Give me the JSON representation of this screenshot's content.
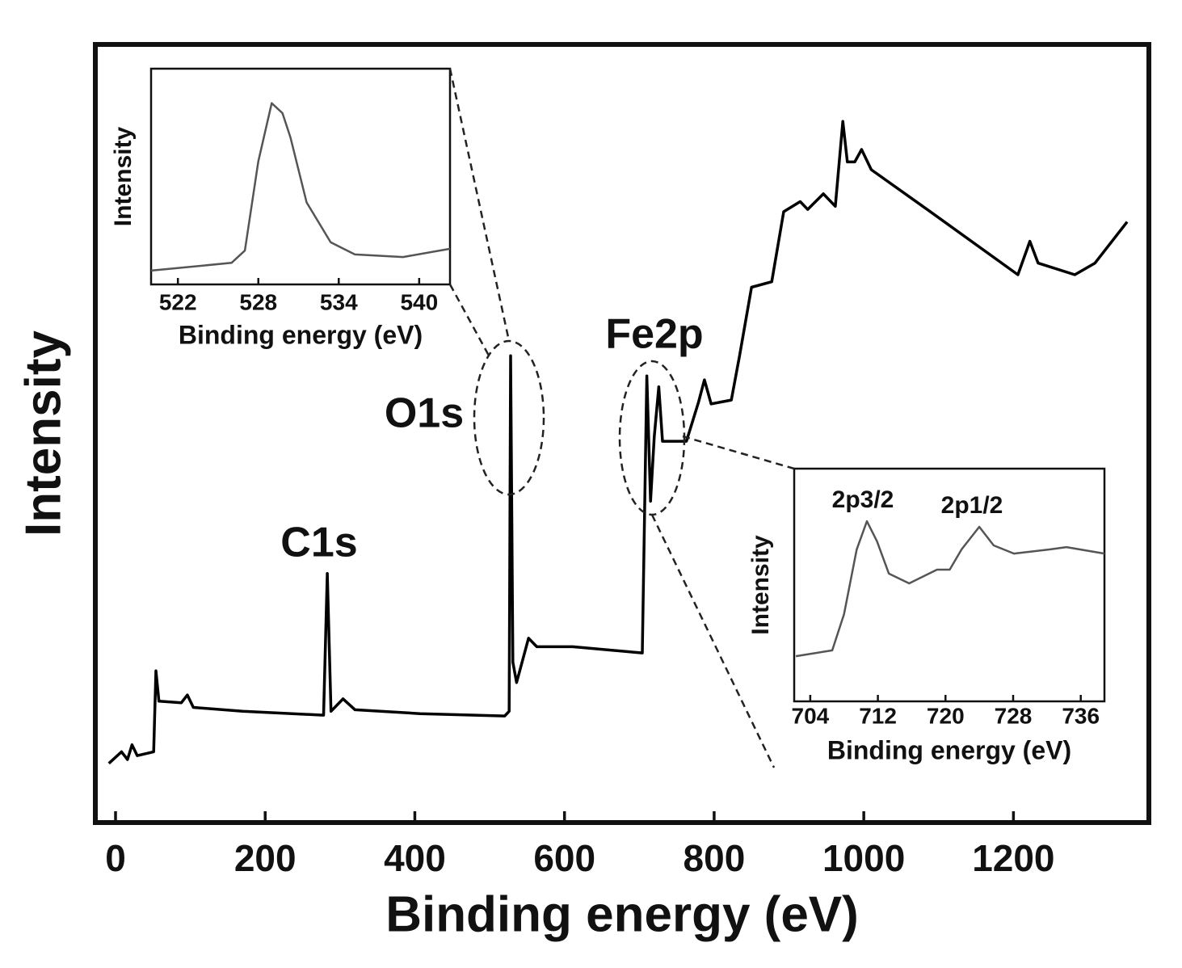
{
  "chart_data": [
    {
      "type": "line",
      "xlabel": "Binding energy (eV)",
      "ylabel": "Intensity",
      "xlim": [
        -27,
        1381
      ],
      "ylim": [
        0,
        100
      ],
      "xticks": [
        0,
        200,
        400,
        600,
        800,
        1000,
        1200
      ],
      "annotations": [
        "C1s",
        "O1s",
        "Fe2p"
      ],
      "series": [
        {
          "color": "#000000",
          "x": [
            -9,
            8,
            16,
            22,
            29,
            51,
            54,
            58,
            88,
            96,
            104,
            170,
            278,
            283,
            288,
            304,
            320,
            407,
            520,
            526,
            528,
            531,
            536,
            552,
            563,
            611,
            704,
            710,
            715,
            720,
            726,
            731,
            763,
            779,
            787,
            796,
            823,
            834,
            850,
            877,
            893,
            915,
            925,
            946,
            962,
            972,
            978,
            988,
            997,
            1010,
            1086,
            1206,
            1222,
            1233,
            1282,
            1309,
            1352
          ],
          "values": [
            7.6,
            9.1,
            8.1,
            10,
            8.6,
            9.1,
            19.5,
            15.6,
            15.4,
            16.4,
            14.8,
            14.3,
            13.8,
            32,
            14.3,
            15.9,
            14.5,
            14,
            13.7,
            14.3,
            60,
            20.6,
            18,
            23.7,
            22.6,
            22.6,
            21.8,
            57.4,
            41.3,
            49.6,
            56,
            49,
            49,
            54,
            56.9,
            53.8,
            54.3,
            60,
            68.8,
            69.5,
            78.5,
            79.8,
            78.8,
            80.8,
            79.2,
            90.1,
            84.9,
            84.9,
            86.5,
            83.9,
            78.7,
            70.4,
            74.7,
            71.9,
            70.4,
            71.9,
            77.2
          ]
        }
      ]
    },
    {
      "type": "line",
      "xlabel": "Binding energy (eV)",
      "ylabel": "Intensity",
      "xlim": [
        520,
        542.3
      ],
      "ylim": [
        0,
        100
      ],
      "xticks": [
        522,
        528,
        534,
        540
      ],
      "series": [
        {
          "color": "#555555",
          "x": [
            520,
            526,
            527,
            528,
            529,
            529.8,
            530.4,
            531.6,
            533.4,
            535.2,
            538.8,
            542.3
          ],
          "values": [
            6.4,
            10,
            15.7,
            57,
            84,
            79.4,
            68,
            38,
            19.5,
            13.9,
            12.7,
            16.5
          ]
        }
      ]
    },
    {
      "type": "line",
      "xlabel": "Binding energy (eV)",
      "ylabel": "Intensity",
      "xlim": [
        702.1,
        738.8
      ],
      "ylim": [
        0,
        100
      ],
      "xticks": [
        704,
        712,
        720,
        728,
        736
      ],
      "annotations": [
        "2p3/2",
        "2p1/2"
      ],
      "series": [
        {
          "color": "#555555",
          "x": [
            702.3,
            706.6,
            708,
            709.5,
            710.7,
            711.9,
            713.3,
            715.7,
            719,
            720.5,
            721.9,
            724,
            725.7,
            728.1,
            732.4,
            734.3,
            738.8
          ],
          "values": [
            19.4,
            21.9,
            37.5,
            65.3,
            77.4,
            68.8,
            54.9,
            50.7,
            56.6,
            56.6,
            65.3,
            75,
            67,
            63.5,
            65.3,
            66.3,
            63.5
          ]
        }
      ]
    }
  ]
}
